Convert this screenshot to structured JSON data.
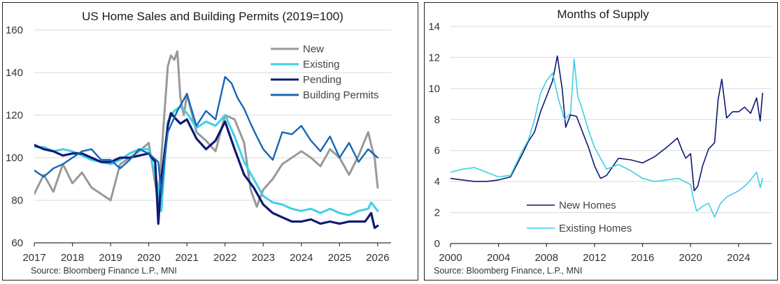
{
  "chart_data": [
    {
      "type": "line",
      "title": "US Home Sales and Building Permits (2019=100)",
      "source": "Source: Bloomberg Finance L.P., MNI",
      "ylim": [
        60,
        160
      ],
      "yticks": [
        "60",
        "80",
        "100",
        "120",
        "140",
        "160"
      ],
      "xlim": [
        2017,
        2026.35
      ],
      "xticks": [
        "2017",
        "2018",
        "2019",
        "2020",
        "2021",
        "2022",
        "2023",
        "2024",
        "2025",
        "2026"
      ],
      "grid": "horizontal",
      "legend_position": "top-right",
      "series": [
        {
          "name": "New",
          "color": "#999999",
          "width": 3,
          "x": [
            2017.0,
            2017.25,
            2017.5,
            2017.75,
            2018.0,
            2018.25,
            2018.5,
            2018.75,
            2019.0,
            2019.25,
            2019.5,
            2019.75,
            2020.0,
            2020.25,
            2020.33,
            2020.42,
            2020.5,
            2020.58,
            2020.67,
            2020.75,
            2020.83,
            2020.92,
            2021.0,
            2021.25,
            2021.5,
            2021.75,
            2022.0,
            2022.25,
            2022.5,
            2022.67,
            2022.83,
            2023.0,
            2023.25,
            2023.5,
            2023.75,
            2024.0,
            2024.25,
            2024.5,
            2024.75,
            2025.0,
            2025.25,
            2025.5,
            2025.75,
            2025.83,
            2025.92,
            2026.0
          ],
          "y": [
            83,
            92,
            84,
            97,
            88,
            93,
            86,
            83,
            80,
            97,
            100,
            103,
            107,
            79,
            100,
            123,
            143,
            148,
            146,
            150,
            128,
            120,
            130,
            112,
            108,
            103,
            120,
            118,
            107,
            85,
            77,
            85,
            90,
            97,
            100,
            103,
            100,
            96,
            104,
            100,
            92,
            101,
            112,
            106,
            100,
            86
          ]
        },
        {
          "name": "Existing",
          "color": "#3ecfe6",
          "width": 3,
          "x": [
            2017.0,
            2017.25,
            2017.5,
            2017.75,
            2018.0,
            2018.25,
            2018.5,
            2018.75,
            2019.0,
            2019.25,
            2019.5,
            2019.75,
            2020.0,
            2020.25,
            2020.33,
            2020.42,
            2020.5,
            2020.67,
            2020.83,
            2021.0,
            2021.25,
            2021.5,
            2021.75,
            2022.0,
            2022.25,
            2022.5,
            2022.75,
            2023.0,
            2023.25,
            2023.5,
            2023.75,
            2024.0,
            2024.25,
            2024.5,
            2024.75,
            2025.0,
            2025.25,
            2025.5,
            2025.75,
            2025.83,
            2026.0
          ],
          "y": [
            105,
            105,
            103,
            104,
            103,
            101,
            99,
            98,
            97,
            99,
            102,
            104,
            104,
            86,
            75,
            98,
            117,
            122,
            124,
            121,
            114,
            117,
            115,
            120,
            110,
            98,
            90,
            82,
            79,
            78,
            76,
            75,
            76,
            74,
            76,
            74,
            73,
            75,
            76,
            79,
            75
          ]
        },
        {
          "name": "Pending",
          "color": "#0d1a72",
          "width": 3.2,
          "x": [
            2017.0,
            2017.25,
            2017.5,
            2017.75,
            2018.0,
            2018.25,
            2018.5,
            2018.75,
            2019.0,
            2019.25,
            2019.5,
            2019.75,
            2020.0,
            2020.17,
            2020.25,
            2020.33,
            2020.5,
            2020.58,
            2020.67,
            2020.83,
            2021.0,
            2021.25,
            2021.5,
            2021.75,
            2022.0,
            2022.25,
            2022.5,
            2022.75,
            2023.0,
            2023.25,
            2023.5,
            2023.75,
            2024.0,
            2024.25,
            2024.5,
            2024.75,
            2025.0,
            2025.25,
            2025.5,
            2025.67,
            2025.83,
            2025.92,
            2026.0
          ],
          "y": [
            106,
            104,
            103,
            101,
            102,
            102,
            100,
            98,
            98,
            100,
            100,
            101,
            102,
            98,
            69,
            90,
            115,
            121,
            119,
            116,
            118,
            109,
            104,
            108,
            117,
            104,
            92,
            86,
            78,
            74,
            72,
            70,
            70,
            71,
            69,
            70,
            69,
            70,
            70,
            70,
            74,
            67,
            68
          ]
        },
        {
          "name": "Building Permits",
          "color": "#1567b6",
          "width": 2.4,
          "x": [
            2017.0,
            2017.25,
            2017.5,
            2017.75,
            2018.0,
            2018.25,
            2018.5,
            2018.75,
            2019.0,
            2019.25,
            2019.5,
            2019.75,
            2020.0,
            2020.25,
            2020.33,
            2020.42,
            2020.5,
            2020.75,
            2021.0,
            2021.25,
            2021.5,
            2021.75,
            2022.0,
            2022.17,
            2022.33,
            2022.5,
            2022.67,
            2022.83,
            2023.0,
            2023.25,
            2023.5,
            2023.75,
            2024.0,
            2024.25,
            2024.5,
            2024.75,
            2025.0,
            2025.25,
            2025.5,
            2025.75,
            2026.0
          ],
          "y": [
            94,
            91,
            95,
            97,
            100,
            103,
            104,
            99,
            99,
            95,
            99,
            104,
            102,
            98,
            83,
            100,
            112,
            122,
            130,
            115,
            122,
            118,
            138,
            135,
            128,
            123,
            116,
            110,
            104,
            99,
            112,
            111,
            115,
            108,
            103,
            110,
            100,
            107,
            98,
            104,
            100
          ]
        }
      ]
    },
    {
      "type": "line",
      "title": "Months of Supply",
      "source": "Source: Bloomberg Finance, L.P., MNI",
      "ylim": [
        0,
        14
      ],
      "yticks": [
        "0",
        "2",
        "4",
        "6",
        "8",
        "10",
        "12",
        "14"
      ],
      "xlim": [
        2000,
        2026.75
      ],
      "xticks": [
        "2000",
        "2004",
        "2008",
        "2012",
        "2016",
        "2020",
        "2024"
      ],
      "grid": "horizontal",
      "legend_position": "bottom-left",
      "series": [
        {
          "name": "New Homes",
          "color": "#0d1a72",
          "width": 1.6,
          "x": [
            2000,
            2001,
            2002,
            2003,
            2004,
            2005,
            2006,
            2006.5,
            2007,
            2007.5,
            2008,
            2008.5,
            2008.9,
            2009.3,
            2009.6,
            2010,
            2010.5,
            2011,
            2011.5,
            2012,
            2012.5,
            2013,
            2014,
            2015,
            2016,
            2017,
            2018,
            2018.9,
            2019.3,
            2019.6,
            2020,
            2020.3,
            2020.6,
            2021,
            2021.5,
            2022,
            2022.3,
            2022.6,
            2023,
            2023.5,
            2024,
            2024.5,
            2025,
            2025.5,
            2025.8,
            2026
          ],
          "y": [
            4.2,
            4.1,
            4.0,
            4.0,
            4.1,
            4.3,
            5.8,
            6.6,
            7.2,
            8.5,
            9.5,
            10.5,
            12.1,
            10.0,
            7.5,
            8.3,
            8.2,
            7.2,
            6.2,
            5.0,
            4.2,
            4.4,
            5.5,
            5.4,
            5.2,
            5.6,
            6.2,
            6.8,
            6.0,
            5.5,
            5.8,
            3.4,
            3.7,
            5.0,
            6.1,
            6.5,
            9.3,
            10.6,
            8.1,
            8.5,
            8.5,
            8.8,
            8.4,
            9.4,
            7.9,
            9.7
          ]
        },
        {
          "name": "Existing Homes",
          "color": "#3ecfe6",
          "width": 1.6,
          "x": [
            2000,
            2001,
            2002,
            2003,
            2004,
            2005,
            2006,
            2006.5,
            2007,
            2007.5,
            2008,
            2008.5,
            2009,
            2009.5,
            2010,
            2010.3,
            2010.6,
            2011,
            2011.5,
            2012,
            2013,
            2014,
            2015,
            2016,
            2017,
            2018,
            2019,
            2020,
            2020.2,
            2020.5,
            2021,
            2021.5,
            2022,
            2022.5,
            2023,
            2023.5,
            2024,
            2024.5,
            2025,
            2025.5,
            2025.8,
            2026
          ],
          "y": [
            4.6,
            4.8,
            4.9,
            4.6,
            4.3,
            4.4,
            6.0,
            6.7,
            8.0,
            9.7,
            10.5,
            11.0,
            9.3,
            8.0,
            8.4,
            11.9,
            9.5,
            8.6,
            7.3,
            6.2,
            4.8,
            5.1,
            4.7,
            4.2,
            4.0,
            4.1,
            4.2,
            3.8,
            3.0,
            2.1,
            2.4,
            2.6,
            1.7,
            2.6,
            3.0,
            3.2,
            3.4,
            3.7,
            4.1,
            4.6,
            3.6,
            4.2
          ]
        }
      ]
    }
  ]
}
